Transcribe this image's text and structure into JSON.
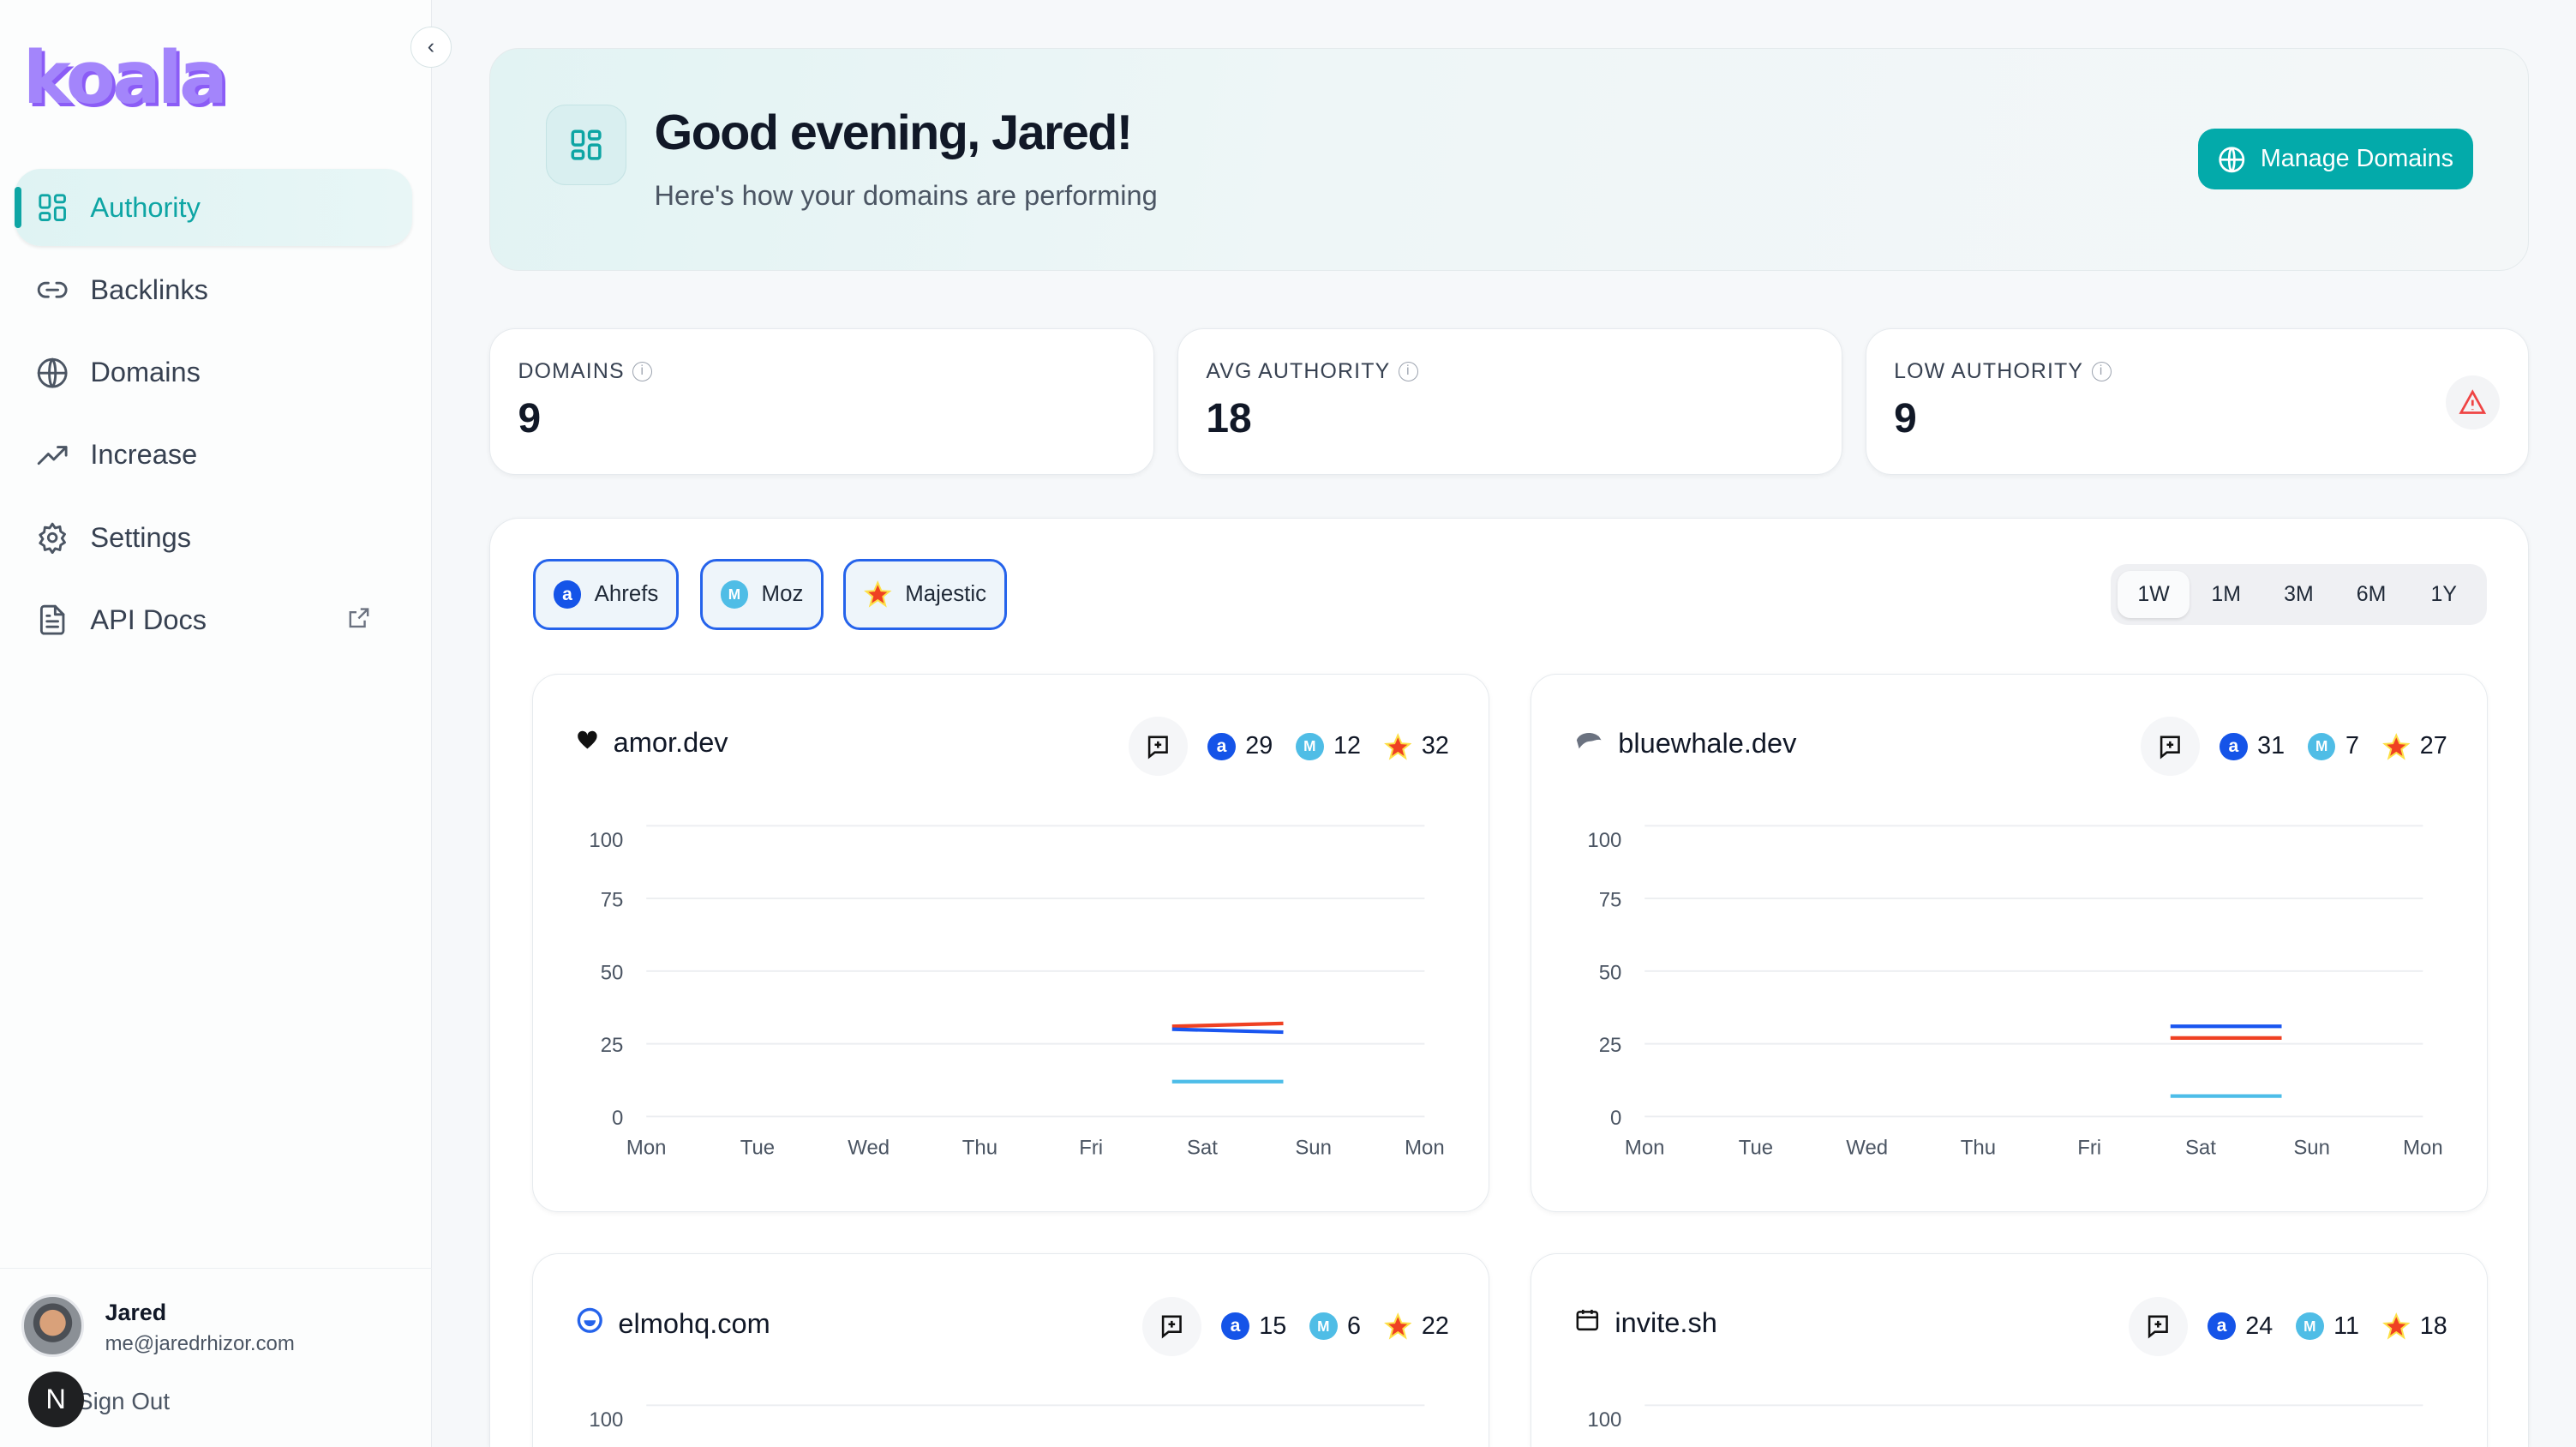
{
  "brand": {
    "logo_text": "koala",
    "logo_color": "#a385fb"
  },
  "sidebar": {
    "items": [
      {
        "label": "Authority",
        "icon": "dashboard-grid-icon",
        "active": true
      },
      {
        "label": "Backlinks",
        "icon": "link-icon"
      },
      {
        "label": "Domains",
        "icon": "globe-icon"
      },
      {
        "label": "Increase",
        "icon": "trending-up-icon"
      },
      {
        "label": "Settings",
        "icon": "gear-icon"
      },
      {
        "label": "API Docs",
        "icon": "document-icon",
        "external": true
      }
    ],
    "user": {
      "name": "Jared",
      "email": "me@jaredrhizor.com",
      "sign_out": "Sign Out",
      "badge": "N"
    }
  },
  "header": {
    "title": "Good evening, Jared!",
    "subtitle": "Here's how your domains are performing",
    "manage_button": "Manage Domains"
  },
  "stats": [
    {
      "label": "DOMAINS",
      "value": "9"
    },
    {
      "label": "AVG AUTHORITY",
      "value": "18"
    },
    {
      "label": "LOW AUTHORITY",
      "value": "9",
      "alert": true
    }
  ],
  "filters": [
    {
      "label": "Ahrefs"
    },
    {
      "label": "Moz"
    },
    {
      "label": "Majestic"
    }
  ],
  "time_ranges": {
    "options": [
      "1W",
      "1M",
      "3M",
      "6M",
      "1Y"
    ],
    "selected": "1W"
  },
  "colors": {
    "accent": "#03aaaa",
    "ahrefs": "#1a56f0",
    "moz": "#4dbde8",
    "majestic": "#ef4123",
    "alert": "#ef4444"
  },
  "domains": [
    {
      "name": "amor.dev",
      "favicon": "heart-icon",
      "ahrefs": "29",
      "moz": "12",
      "majestic": "32"
    },
    {
      "name": "bluewhale.dev",
      "favicon": "whale-icon",
      "ahrefs": "31",
      "moz": "7",
      "majestic": "27"
    },
    {
      "name": "elmohq.com",
      "favicon": "elmo-ring-icon",
      "ahrefs": "15",
      "moz": "6",
      "majestic": "22"
    },
    {
      "name": "invite.sh",
      "favicon": "calendar-icon",
      "ahrefs": "24",
      "moz": "11",
      "majestic": "18"
    }
  ],
  "chart_data": [
    {
      "type": "line",
      "domain": "amor.dev",
      "x_ticks": [
        "Mon",
        "Tue",
        "Wed",
        "Thu",
        "Fri",
        "Sat",
        "Sun",
        "Mon"
      ],
      "y_ticks": [
        0,
        25,
        50,
        75,
        100
      ],
      "ylim": [
        0,
        100
      ],
      "grid": true,
      "series": [
        {
          "name": "Majestic",
          "color": "#ef4123",
          "points": [
            {
              "x": "Fri 17:30",
              "y": 31
            },
            {
              "x": "Sat 17:30",
              "y": 32
            }
          ]
        },
        {
          "name": "Ahrefs",
          "color": "#1a56f0",
          "points": [
            {
              "x": "Fri 17:30",
              "y": 30
            },
            {
              "x": "Sat 17:30",
              "y": 29
            }
          ]
        },
        {
          "name": "Moz",
          "color": "#4dbde8",
          "points": [
            {
              "x": "Fri 17:30",
              "y": 12
            },
            {
              "x": "Sat 17:30",
              "y": 12
            }
          ]
        }
      ]
    },
    {
      "type": "line",
      "domain": "bluewhale.dev",
      "x_ticks": [
        "Mon",
        "Tue",
        "Wed",
        "Thu",
        "Fri",
        "Sat",
        "Sun",
        "Mon"
      ],
      "y_ticks": [
        0,
        25,
        50,
        75,
        100
      ],
      "ylim": [
        0,
        100
      ],
      "grid": true,
      "series": [
        {
          "name": "Ahrefs",
          "color": "#1a56f0",
          "points": [
            {
              "x": "Fri 17:30",
              "y": 31
            },
            {
              "x": "Sat 17:30",
              "y": 31
            }
          ]
        },
        {
          "name": "Majestic",
          "color": "#ef4123",
          "points": [
            {
              "x": "Fri 17:30",
              "y": 27
            },
            {
              "x": "Sat 17:30",
              "y": 27
            }
          ]
        },
        {
          "name": "Moz",
          "color": "#4dbde8",
          "points": [
            {
              "x": "Fri 17:30",
              "y": 7
            },
            {
              "x": "Sat 17:30",
              "y": 7
            }
          ]
        }
      ]
    },
    {
      "type": "line",
      "domain": "elmohq.com",
      "x_ticks": [],
      "y_ticks": [
        100
      ],
      "ylim": [
        0,
        100
      ],
      "grid": true,
      "series": []
    },
    {
      "type": "line",
      "domain": "invite.sh",
      "x_ticks": [],
      "y_ticks": [
        100
      ],
      "ylim": [
        0,
        100
      ],
      "grid": true,
      "series": []
    }
  ]
}
